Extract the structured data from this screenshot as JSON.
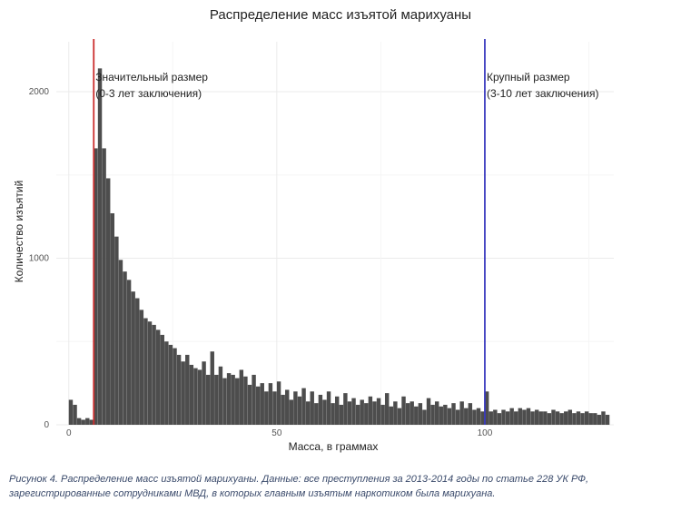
{
  "chart_data": {
    "type": "bar",
    "title": "Распределение масс изъятой марихуаны",
    "xlabel": "Масса, в граммах",
    "ylabel": "Количество изъятий",
    "xlim": [
      -3,
      131
    ],
    "ylim": [
      0,
      2300
    ],
    "xticks": [
      0,
      50,
      100
    ],
    "yticks": [
      0,
      1000,
      2000
    ],
    "grid": true,
    "bin_width": 1,
    "bins_x": [
      0,
      1,
      2,
      3,
      4,
      5,
      6,
      7,
      8,
      9,
      10,
      11,
      12,
      13,
      14,
      15,
      16,
      17,
      18,
      19,
      20,
      21,
      22,
      23,
      24,
      25,
      26,
      27,
      28,
      29,
      30,
      31,
      32,
      33,
      34,
      35,
      36,
      37,
      38,
      39,
      40,
      41,
      42,
      43,
      44,
      45,
      46,
      47,
      48,
      49,
      50,
      51,
      52,
      53,
      54,
      55,
      56,
      57,
      58,
      59,
      60,
      61,
      62,
      63,
      64,
      65,
      66,
      67,
      68,
      69,
      70,
      71,
      72,
      73,
      74,
      75,
      76,
      77,
      78,
      79,
      80,
      81,
      82,
      83,
      84,
      85,
      86,
      87,
      88,
      89,
      90,
      91,
      92,
      93,
      94,
      95,
      96,
      97,
      98,
      99,
      100,
      101,
      102,
      103,
      104,
      105,
      106,
      107,
      108,
      109,
      110,
      111,
      112,
      113,
      114,
      115,
      116,
      117,
      118,
      119,
      120,
      121,
      122,
      123,
      124,
      125,
      126,
      127,
      128,
      129
    ],
    "values": [
      150,
      120,
      40,
      30,
      40,
      30,
      1660,
      2140,
      1660,
      1480,
      1270,
      1130,
      990,
      920,
      870,
      800,
      760,
      690,
      640,
      620,
      600,
      570,
      540,
      500,
      480,
      460,
      420,
      380,
      420,
      360,
      340,
      330,
      380,
      300,
      440,
      300,
      350,
      280,
      310,
      300,
      280,
      330,
      290,
      240,
      300,
      230,
      250,
      200,
      250,
      200,
      260,
      180,
      210,
      150,
      200,
      170,
      220,
      140,
      200,
      130,
      180,
      150,
      200,
      130,
      170,
      120,
      190,
      140,
      160,
      120,
      150,
      130,
      170,
      140,
      160,
      120,
      190,
      110,
      140,
      100,
      170,
      130,
      140,
      110,
      130,
      90,
      160,
      120,
      140,
      110,
      120,
      100,
      130,
      90,
      140,
      100,
      130,
      90,
      100,
      80,
      200,
      80,
      90,
      70,
      90,
      80,
      100,
      80,
      100,
      90,
      100,
      80,
      90,
      80,
      80,
      70,
      90,
      80,
      70,
      80,
      90,
      70,
      80,
      70,
      80,
      70,
      70,
      60,
      80,
      60
    ],
    "color": "#4d4d4d",
    "reference_lines": [
      {
        "x": 6,
        "color": "#cc2f2f",
        "label_line1": "Значительный размер",
        "label_line2": "(0-3 лет заключения)"
      },
      {
        "x": 100,
        "color": "#3b3bbf",
        "label_line1": "Крупный размер",
        "label_line2": "(3-10 лет заключения)"
      }
    ]
  },
  "caption": "Рисунок 4. Распределение масс изъятой марихуаны. Данные: все преступления за 2013-2014 годы по статье 228 УК РФ, зарегистрированные сотрудниками МВД, в которых главным изъятым наркотиком была марихуана."
}
